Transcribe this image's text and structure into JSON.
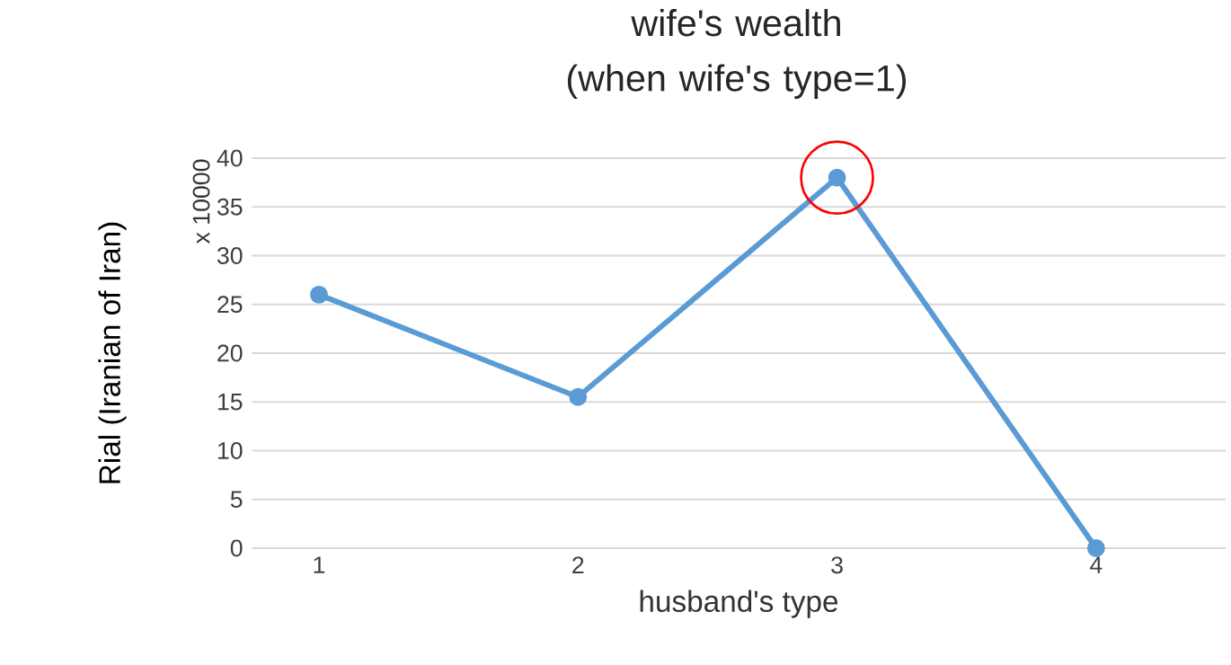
{
  "chart_data": {
    "type": "line",
    "title": "wife's wealth\n(when wife's type=1)",
    "xlabel": "husband's type",
    "ylabel": "Rial (Iranian of Iran)",
    "annotations": [
      "x 10000"
    ],
    "categories": [
      "1",
      "2",
      "3",
      "4"
    ],
    "series": [
      {
        "color": "#5b9bd5",
        "values": [
          26,
          15.5,
          38,
          0
        ]
      }
    ],
    "ylim": [
      0,
      40
    ],
    "yticks": [
      0,
      5,
      10,
      15,
      20,
      25,
      30,
      35,
      40
    ],
    "grid": "y",
    "marker": "circle",
    "line_style": "solid"
  }
}
